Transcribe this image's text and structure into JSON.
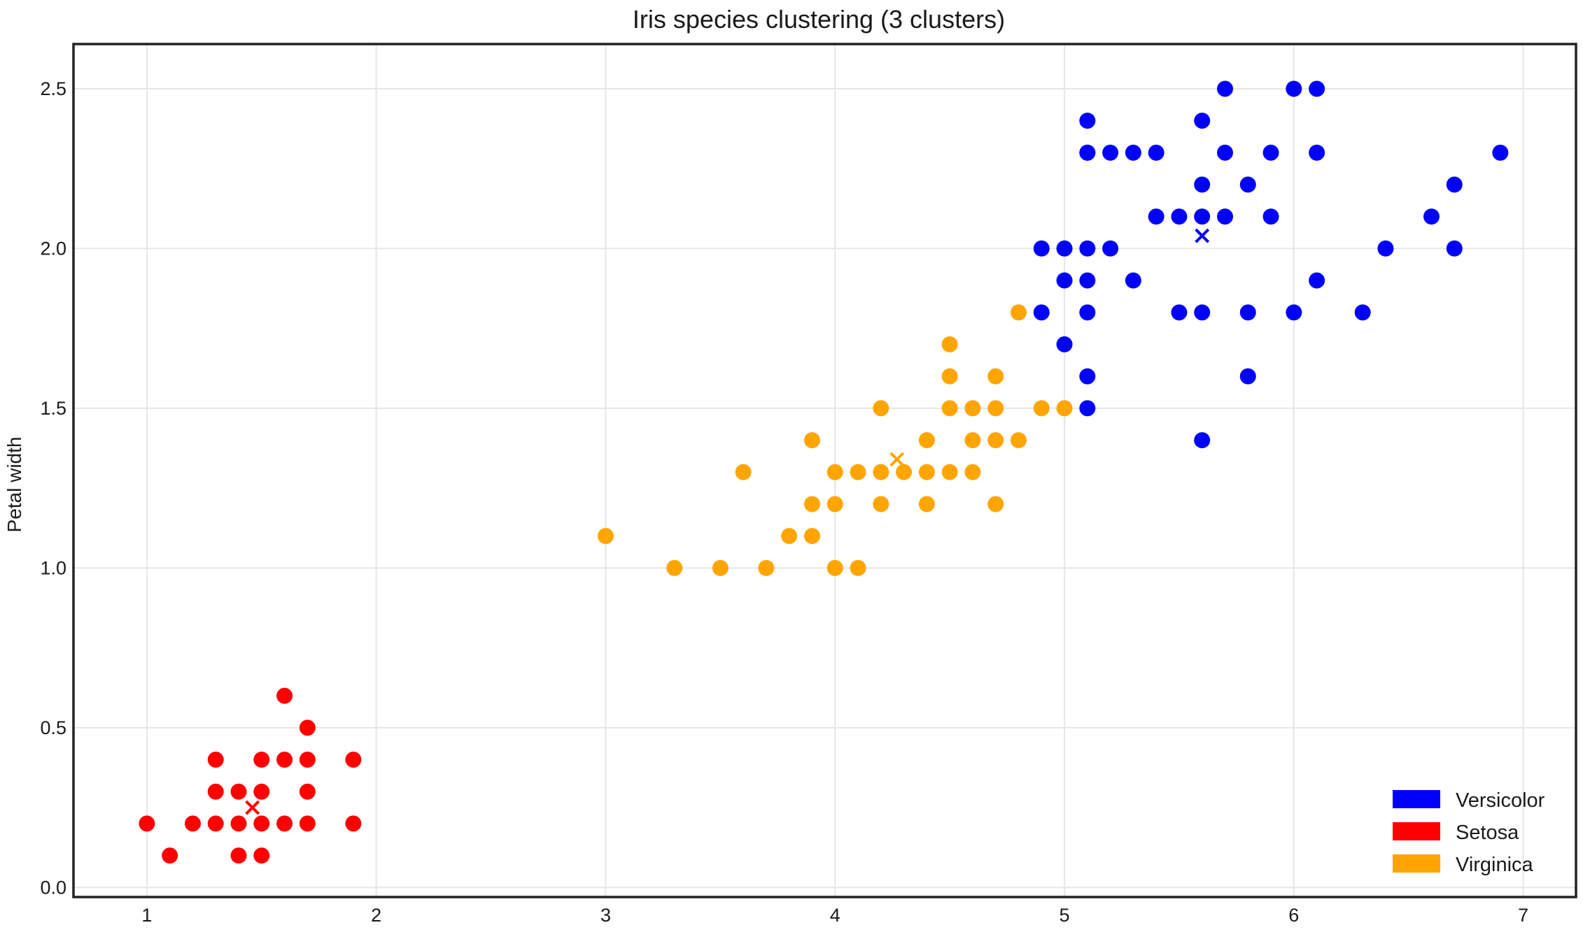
{
  "chart_data": {
    "type": "scatter",
    "title": "Iris species clustering (3 clusters)",
    "xlabel": "",
    "ylabel": "Petal width",
    "xlim": [
      0.68,
      7.23
    ],
    "ylim": [
      -0.03,
      2.64
    ],
    "xticks": [
      1,
      2,
      3,
      4,
      5,
      6,
      7
    ],
    "yticks": [
      0.0,
      0.5,
      1.0,
      1.5,
      2.0,
      2.5
    ],
    "xtick_labels": [
      "1",
      "2",
      "3",
      "4",
      "5",
      "6",
      "7"
    ],
    "ytick_labels": [
      "0.0",
      "0.5",
      "1.0",
      "1.5",
      "2.0",
      "2.5"
    ],
    "grid": true,
    "legend_position": "bottom-right",
    "marker_size_points": 7,
    "series": [
      {
        "name": "Versicolor",
        "color": "#0000ff",
        "centroid": [
          5.6,
          2.04
        ],
        "x": [
          4.9,
          5.0,
          5.0,
          5.0,
          5.1,
          5.1,
          5.1,
          5.1,
          5.1,
          5.1,
          5.1,
          5.1,
          5.2,
          5.2,
          5.3,
          5.3,
          5.4,
          5.4,
          5.5,
          5.5,
          5.6,
          5.6,
          5.6,
          5.6,
          5.6,
          5.7,
          5.7,
          5.7,
          5.8,
          5.8,
          5.8,
          5.9,
          5.9,
          6.0,
          6.0,
          6.1,
          6.1,
          6.1,
          6.3,
          6.4,
          6.6,
          6.7,
          6.7,
          6.9,
          4.9
        ],
        "y": [
          2.0,
          2.0,
          1.9,
          1.7,
          2.4,
          2.3,
          2.0,
          1.9,
          1.8,
          1.6,
          1.5,
          2.3,
          2.3,
          2.0,
          2.3,
          1.9,
          2.3,
          2.1,
          2.1,
          1.8,
          2.4,
          2.2,
          2.1,
          1.8,
          1.4,
          2.5,
          2.3,
          2.1,
          2.2,
          1.8,
          1.6,
          2.3,
          2.1,
          2.5,
          1.8,
          2.5,
          2.3,
          1.9,
          1.8,
          2.0,
          2.1,
          2.2,
          2.0,
          2.3,
          1.8
        ]
      },
      {
        "name": "Setosa",
        "color": "#ff0000",
        "centroid": [
          1.46,
          0.25
        ],
        "x": [
          1.0,
          1.1,
          1.2,
          1.3,
          1.3,
          1.3,
          1.4,
          1.4,
          1.4,
          1.5,
          1.5,
          1.5,
          1.5,
          1.6,
          1.6,
          1.6,
          1.7,
          1.7,
          1.7,
          1.7,
          1.9,
          1.9
        ],
        "y": [
          0.2,
          0.1,
          0.2,
          0.2,
          0.3,
          0.4,
          0.1,
          0.2,
          0.3,
          0.1,
          0.2,
          0.3,
          0.4,
          0.2,
          0.4,
          0.6,
          0.2,
          0.3,
          0.4,
          0.5,
          0.2,
          0.4
        ]
      },
      {
        "name": "Virginica",
        "color": "#ffa500",
        "centroid": [
          4.27,
          1.34
        ],
        "x": [
          3.0,
          3.3,
          3.5,
          3.6,
          3.7,
          3.8,
          3.9,
          3.9,
          3.9,
          4.0,
          4.0,
          4.0,
          4.1,
          4.1,
          4.2,
          4.2,
          4.2,
          4.3,
          4.4,
          4.4,
          4.4,
          4.5,
          4.5,
          4.5,
          4.5,
          4.6,
          4.6,
          4.6,
          4.7,
          4.7,
          4.7,
          4.7,
          4.8,
          4.8,
          4.9,
          5.0
        ],
        "y": [
          1.1,
          1.0,
          1.0,
          1.3,
          1.0,
          1.1,
          1.1,
          1.2,
          1.4,
          1.0,
          1.2,
          1.3,
          1.0,
          1.3,
          1.2,
          1.3,
          1.5,
          1.3,
          1.2,
          1.3,
          1.4,
          1.3,
          1.5,
          1.6,
          1.7,
          1.3,
          1.4,
          1.5,
          1.2,
          1.4,
          1.5,
          1.6,
          1.4,
          1.8,
          1.5,
          1.5
        ]
      }
    ]
  }
}
